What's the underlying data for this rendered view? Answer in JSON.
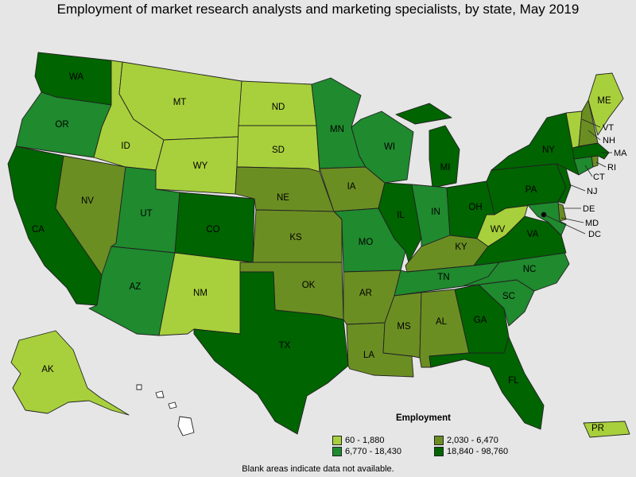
{
  "title": "Employment of market research analysts and marketing specialists, by state, May 2019",
  "note": "Blank areas indicate data not available.",
  "legend": {
    "title": "Employment",
    "ranges": [
      {
        "label": "60 - 1,880",
        "color": "#a8d03c"
      },
      {
        "label": "2,030 - 6,470",
        "color": "#6b8e23"
      },
      {
        "label": "6,770 - 18,430",
        "color": "#1f8a2e"
      },
      {
        "label": "18,840 - 98,760",
        "color": "#006400"
      }
    ]
  },
  "states": [
    {
      "code": "WA",
      "class": 3
    },
    {
      "code": "OR",
      "class": 2
    },
    {
      "code": "CA",
      "class": 3
    },
    {
      "code": "NV",
      "class": 1
    },
    {
      "code": "ID",
      "class": 0
    },
    {
      "code": "MT",
      "class": 0
    },
    {
      "code": "WY",
      "class": 0
    },
    {
      "code": "UT",
      "class": 2
    },
    {
      "code": "AZ",
      "class": 2
    },
    {
      "code": "CO",
      "class": 3
    },
    {
      "code": "NM",
      "class": 0
    },
    {
      "code": "ND",
      "class": 0
    },
    {
      "code": "SD",
      "class": 0
    },
    {
      "code": "NE",
      "class": 1
    },
    {
      "code": "KS",
      "class": 1
    },
    {
      "code": "OK",
      "class": 1
    },
    {
      "code": "TX",
      "class": 3
    },
    {
      "code": "MN",
      "class": 2
    },
    {
      "code": "IA",
      "class": 1
    },
    {
      "code": "MO",
      "class": 2
    },
    {
      "code": "AR",
      "class": 1
    },
    {
      "code": "LA",
      "class": 1
    },
    {
      "code": "WI",
      "class": 2
    },
    {
      "code": "IL",
      "class": 3
    },
    {
      "code": "MI",
      "class": 3
    },
    {
      "code": "IN",
      "class": 2
    },
    {
      "code": "OH",
      "class": 3
    },
    {
      "code": "KY",
      "class": 1
    },
    {
      "code": "TN",
      "class": 2
    },
    {
      "code": "MS",
      "class": 1
    },
    {
      "code": "AL",
      "class": 1
    },
    {
      "code": "GA",
      "class": 3
    },
    {
      "code": "FL",
      "class": 3
    },
    {
      "code": "SC",
      "class": 2
    },
    {
      "code": "NC",
      "class": 2
    },
    {
      "code": "VA",
      "class": 3
    },
    {
      "code": "WV",
      "class": 0
    },
    {
      "code": "PA",
      "class": 3
    },
    {
      "code": "NY",
      "class": 3
    },
    {
      "code": "NJ",
      "class": 3
    },
    {
      "code": "DE",
      "class": 1
    },
    {
      "code": "MD",
      "class": 2
    },
    {
      "code": "DC",
      "class": 3
    },
    {
      "code": "CT",
      "class": 2
    },
    {
      "code": "RI",
      "class": 1
    },
    {
      "code": "MA",
      "class": 3
    },
    {
      "code": "VT",
      "class": 0
    },
    {
      "code": "NH",
      "class": 1
    },
    {
      "code": "ME",
      "class": 0
    },
    {
      "code": "AK",
      "class": 0
    },
    {
      "code": "HI",
      "class": -1
    },
    {
      "code": "PR",
      "class": 0
    }
  ]
}
